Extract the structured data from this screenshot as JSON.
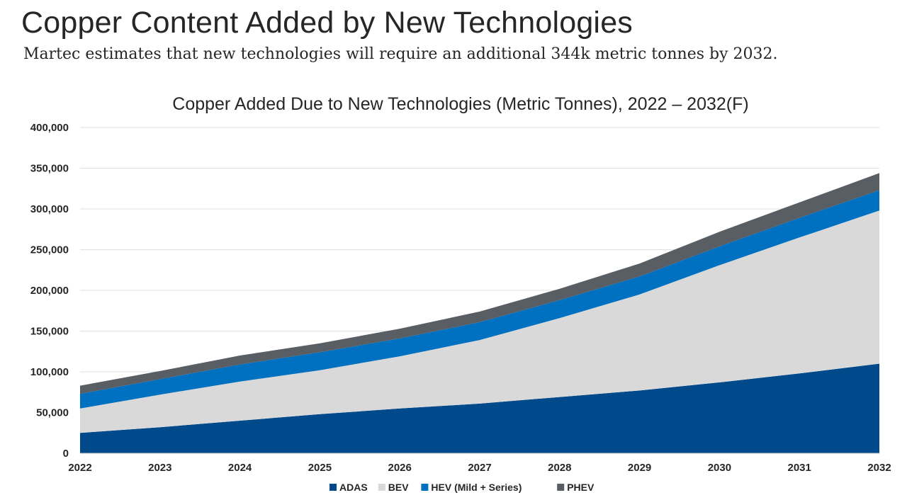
{
  "slide": {
    "title": "Copper Content Added by New Technologies",
    "subtitle": "Martec estimates that new technologies will require an additional 344k metric tonnes by 2032."
  },
  "chart_data": {
    "type": "area",
    "stacked": true,
    "title": "Copper Added Due to New Technologies (Metric Tonnes), 2022 – 2032(F)",
    "xlabel": "",
    "ylabel": "",
    "x": [
      "2022",
      "2023",
      "2024",
      "2025",
      "2026",
      "2027",
      "2028",
      "2029",
      "2030",
      "2031",
      "2032"
    ],
    "ylim": [
      0,
      400000
    ],
    "yticks": [
      "0",
      "50,000",
      "100,000",
      "150,000",
      "200,000",
      "250,000",
      "300,000",
      "350,000",
      "400,000"
    ],
    "grid": true,
    "legend_position": "bottom",
    "series": [
      {
        "name": "ADAS",
        "color": "#004a8c",
        "values": [
          25000,
          32000,
          40000,
          48000,
          55000,
          61000,
          69000,
          77000,
          87000,
          98000,
          110000
        ]
      },
      {
        "name": "BEV",
        "color": "#d9d9d9",
        "values": [
          30000,
          40000,
          48000,
          54000,
          64000,
          78000,
          97000,
          118000,
          144000,
          167000,
          188000
        ]
      },
      {
        "name": "HEV (Mild + Series)",
        "color": "#0070c0",
        "values": [
          18000,
          19000,
          21000,
          22000,
          22000,
          22000,
          22000,
          22000,
          23000,
          24000,
          25000
        ]
      },
      {
        "name": "PHEV",
        "color": "#595d64",
        "values": [
          10000,
          10000,
          11000,
          11000,
          12000,
          13000,
          14000,
          16000,
          18000,
          19000,
          21000
        ]
      }
    ]
  }
}
